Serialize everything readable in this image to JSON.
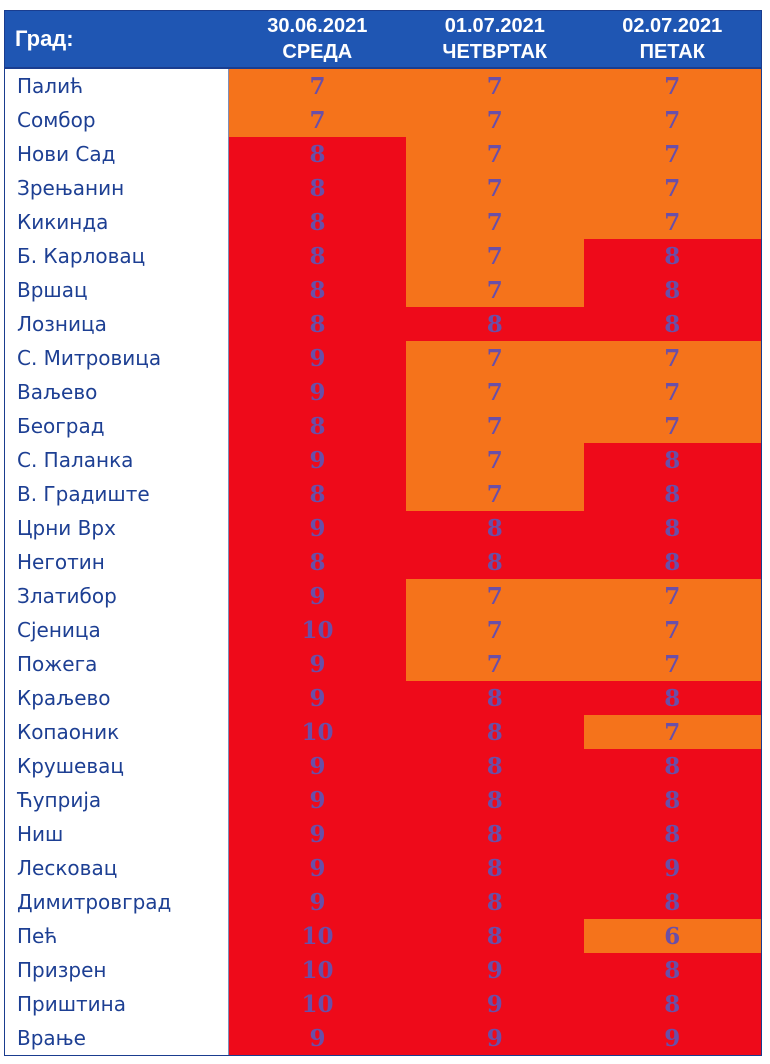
{
  "header": {
    "city_label": "Град:",
    "days": [
      {
        "date": "30.06.2021",
        "weekday": "СРЕДА"
      },
      {
        "date": "01.07.2021",
        "weekday": "ЧЕТВРТАК"
      },
      {
        "date": "02.07.2021",
        "weekday": "ПЕТАК"
      }
    ]
  },
  "colors": {
    "header_bg": "#1f56b3",
    "level_7_bg": "#f5731b",
    "level_8_plus_bg": "#ee0a1a",
    "city_text": "#1d3f93",
    "value_text": "#6a4fa8"
  },
  "rows": [
    {
      "city": "Палић",
      "values": [
        "7",
        "7",
        "7"
      ]
    },
    {
      "city": "Сомбор",
      "values": [
        "7",
        "7",
        "7"
      ]
    },
    {
      "city": "Нови Сад",
      "values": [
        "8",
        "7",
        "7"
      ]
    },
    {
      "city": "Зрењанин",
      "values": [
        "8",
        "7",
        "7"
      ]
    },
    {
      "city": "Кикинда",
      "values": [
        "8",
        "7",
        "7"
      ]
    },
    {
      "city": "Б. Карловац",
      "values": [
        "8",
        "7",
        "8"
      ]
    },
    {
      "city": "Вршац",
      "values": [
        "8",
        "7",
        "8"
      ]
    },
    {
      "city": "Лозница",
      "values": [
        "8",
        "8",
        "8"
      ]
    },
    {
      "city": "С. Митровица",
      "values": [
        "9",
        "7",
        "7"
      ]
    },
    {
      "city": "Ваљево",
      "values": [
        "9",
        "7",
        "7"
      ]
    },
    {
      "city": "Београд",
      "values": [
        "8",
        "7",
        "7"
      ]
    },
    {
      "city": "С. Паланка",
      "values": [
        "9",
        "7",
        "8"
      ]
    },
    {
      "city": "В. Градиште",
      "values": [
        "8",
        "7",
        "8"
      ]
    },
    {
      "city": "Црни Врх",
      "values": [
        "9",
        "8",
        "8"
      ]
    },
    {
      "city": "Неготин",
      "values": [
        "8",
        "8",
        "8"
      ]
    },
    {
      "city": "Златибор",
      "values": [
        "9",
        "7",
        "7"
      ]
    },
    {
      "city": "Сјеница",
      "values": [
        "10",
        "7",
        "7"
      ]
    },
    {
      "city": "Пожега",
      "values": [
        "9",
        "7",
        "7"
      ]
    },
    {
      "city": "Краљево",
      "values": [
        "9",
        "8",
        "8"
      ]
    },
    {
      "city": "Копаоник",
      "values": [
        "10",
        "8",
        "7"
      ]
    },
    {
      "city": "Крушевац",
      "values": [
        "9",
        "8",
        "8"
      ]
    },
    {
      "city": "Ћуприја",
      "values": [
        "9",
        "8",
        "8"
      ]
    },
    {
      "city": "Ниш",
      "values": [
        "9",
        "8",
        "8"
      ]
    },
    {
      "city": "Лесковац",
      "values": [
        "9",
        "8",
        "9"
      ]
    },
    {
      "city": "Димитровград",
      "values": [
        "9",
        "8",
        "8"
      ]
    },
    {
      "city": "Пећ",
      "values": [
        "10",
        "8",
        "6"
      ]
    },
    {
      "city": "Призрен",
      "values": [
        "10",
        "9",
        "8"
      ]
    },
    {
      "city": "Приштина",
      "values": [
        "10",
        "9",
        "8"
      ]
    },
    {
      "city": "Врање",
      "values": [
        "9",
        "9",
        "9"
      ]
    }
  ]
}
